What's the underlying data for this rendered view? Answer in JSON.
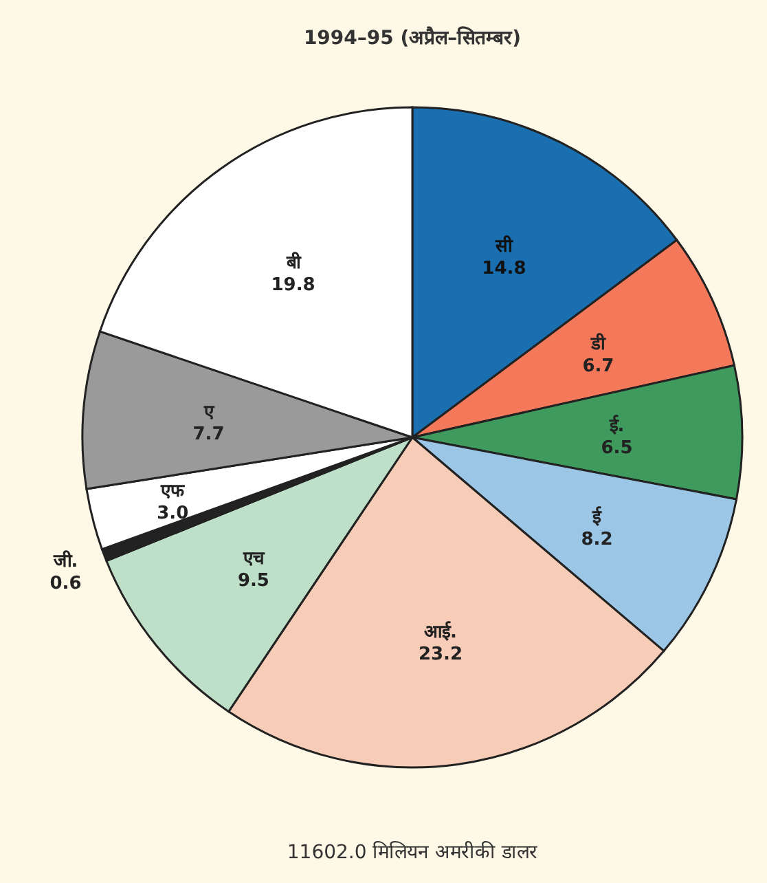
{
  "chart_data": {
    "type": "pie",
    "title": "1994–95 (अप्रैल–सितम्बर)",
    "categories": [
      "सी",
      "डी",
      "ई.",
      "ई",
      "आई.",
      "एच",
      "जी.",
      "एफ",
      "ए",
      "बी"
    ],
    "values": [
      14.8,
      6.7,
      6.5,
      8.2,
      23.2,
      9.5,
      0.6,
      3.0,
      7.7,
      19.8
    ],
    "colors": [
      "#1a6fb0",
      "#f4785a",
      "#3f9a5e",
      "#9cc6e6",
      "#f8cdb8",
      "#bfe0c8",
      "#222222",
      "#ffffff",
      "#9a9a9a",
      "#ffffff"
    ],
    "value_labels": [
      "14.8",
      "6.7",
      "6.5",
      "8.2",
      "23.2",
      "9.5",
      "0.6",
      "3.0",
      "7.7",
      "19.8"
    ],
    "annotations": [
      "11602.0 मिलियन अमरीकी डालर"
    ]
  }
}
